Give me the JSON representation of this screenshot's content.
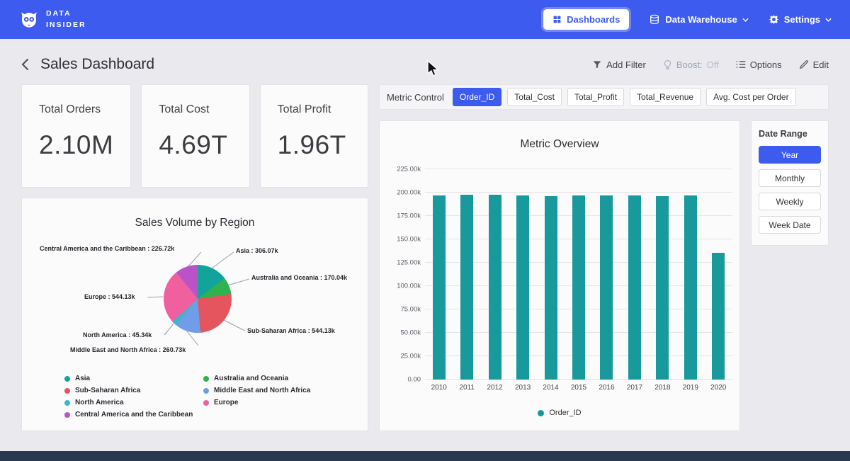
{
  "colors": {
    "accent": "#3e5bf0",
    "navbar": "#3e5bf0",
    "bar_teal": "#18999c"
  },
  "navbar": {
    "brand_line1": "DATA",
    "brand_line2": "INSIDER",
    "dashboards_label": "Dashboards",
    "data_warehouse_label": "Data Warehouse",
    "settings_label": "Settings"
  },
  "header": {
    "title": "Sales Dashboard",
    "add_filter_label": "Add Filter",
    "boost_label": "Boost:",
    "boost_value": "Off",
    "options_label": "Options",
    "edit_label": "Edit"
  },
  "kpis": [
    {
      "label": "Total Orders",
      "value": "2.10M"
    },
    {
      "label": "Total Cost",
      "value": "4.69T"
    },
    {
      "label": "Total Profit",
      "value": "1.96T"
    }
  ],
  "metric_control": {
    "label": "Metric Control",
    "buttons": [
      {
        "label": "Order_ID",
        "active": true
      },
      {
        "label": "Total_Cost",
        "active": false
      },
      {
        "label": "Total_Profit",
        "active": false
      },
      {
        "label": "Total_Revenue",
        "active": false
      },
      {
        "label": "Avg. Cost per Order",
        "active": false
      }
    ]
  },
  "date_range": {
    "label": "Date Range",
    "buttons": [
      {
        "label": "Year",
        "active": true
      },
      {
        "label": "Monthly",
        "active": false
      },
      {
        "label": "Weekly",
        "active": false
      },
      {
        "label": "Week Date",
        "active": false
      }
    ]
  },
  "chart_data": [
    {
      "type": "pie",
      "title": "Sales Volume by Region",
      "labels": [
        "Asia",
        "Australia and Oceania",
        "Sub-Saharan Africa",
        "Middle East and North Africa",
        "North America",
        "Europe",
        "Central America and the Caribbean"
      ],
      "values": [
        306.07,
        170.04,
        544.13,
        260.73,
        45.34,
        544.13,
        226.72
      ],
      "unit": "k",
      "colors": [
        "#12a39a",
        "#2eb34e",
        "#e4555e",
        "#6f9de8",
        "#39b7c9",
        "#f0609f",
        "#bb53c8"
      ],
      "annotations": [
        "Central America and the Caribbean : 226.72k",
        "Asia : 306.07k",
        "Australia and Oceania : 170.04k",
        "Europe : 544.13k",
        "Sub-Saharan Africa : 544.13k",
        "North America : 45.34k",
        "Middle East and North Africa : 260.73k"
      ],
      "legend_columns": [
        [
          0,
          2,
          4,
          6
        ],
        [
          1,
          3,
          5
        ]
      ]
    },
    {
      "type": "bar",
      "title": "Metric Overview",
      "categories": [
        "2010",
        "2011",
        "2012",
        "2013",
        "2014",
        "2015",
        "2016",
        "2017",
        "2018",
        "2019",
        "2020"
      ],
      "series": [
        {
          "name": "Order_ID",
          "color": "#18999c",
          "values": [
            197000,
            197400,
            197700,
            197000,
            196500,
            197100,
            197300,
            196800,
            196200,
            196700,
            135500
          ]
        }
      ],
      "ylim": [
        0,
        225000
      ],
      "yticks": [
        {
          "label": "225.00k",
          "value": 225000
        },
        {
          "label": "200.00k",
          "value": 200000
        },
        {
          "label": "175.00k",
          "value": 175000
        },
        {
          "label": "150.00k",
          "value": 150000
        },
        {
          "label": "125.00k",
          "value": 125000
        },
        {
          "label": "100.00k",
          "value": 100000
        },
        {
          "label": "75.00k",
          "value": 75000
        },
        {
          "label": "50.00k",
          "value": 50000
        },
        {
          "label": "25.00k",
          "value": 25000
        },
        {
          "label": "0.00",
          "value": 0
        }
      ],
      "grid": true,
      "legend_position": "bottom"
    }
  ]
}
